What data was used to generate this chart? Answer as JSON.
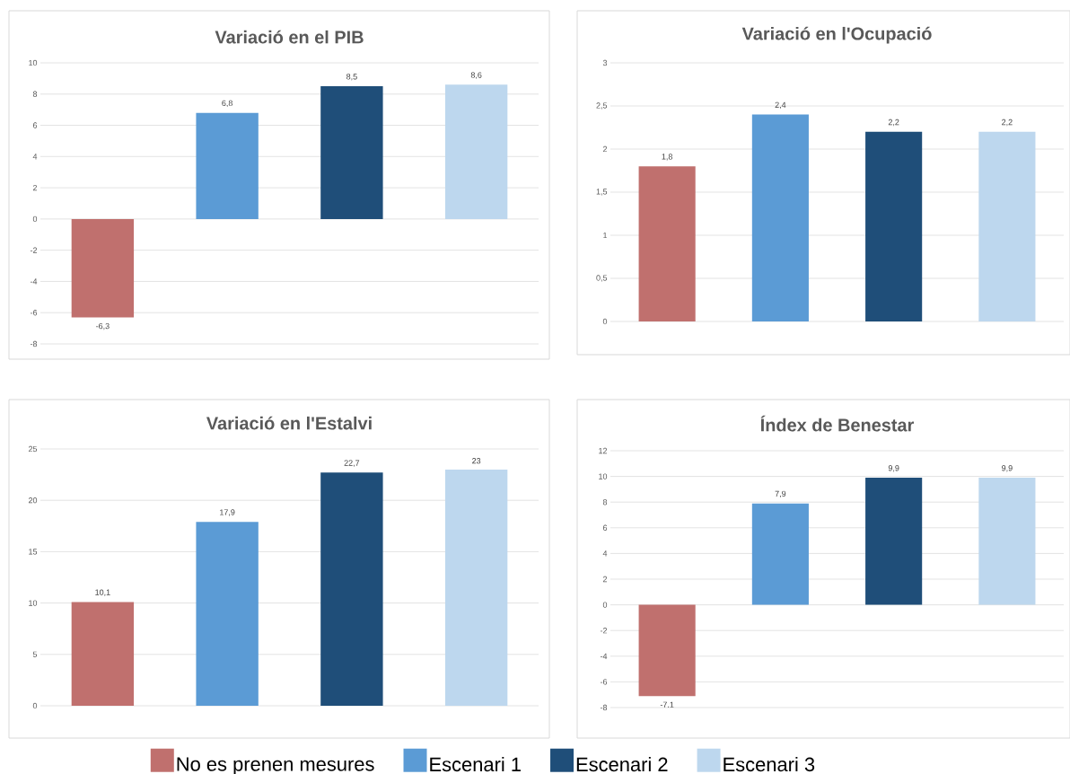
{
  "chart_data": [
    {
      "type": "bar",
      "title": "Variació en el PIB",
      "categories": [
        null,
        null,
        null,
        null
      ],
      "ylim": [
        -8,
        10
      ],
      "yticks": [
        -8,
        -6,
        -4,
        -2,
        0,
        2,
        4,
        6,
        8,
        10
      ],
      "grid": "y",
      "series": [
        {
          "color": "#c0706e",
          "values": [
            -6.3,
            null,
            null,
            null
          ],
          "value_labels": [
            "-6,3",
            null,
            null,
            null
          ]
        },
        {
          "color": "#5b9bd5",
          "values": [
            null,
            6.8,
            null,
            null
          ],
          "value_labels": [
            null,
            "6,8",
            null,
            null
          ]
        },
        {
          "color": "#1f4e79",
          "values": [
            null,
            null,
            8.5,
            null
          ],
          "value_labels": [
            null,
            null,
            "8,5",
            null
          ]
        },
        {
          "color": "#bdd7ee",
          "values": [
            null,
            null,
            null,
            8.6
          ],
          "value_labels": [
            null,
            null,
            null,
            "8,6"
          ]
        }
      ]
    },
    {
      "type": "bar",
      "title": "Variació en l'Ocupació",
      "categories": [
        null,
        null,
        null,
        null
      ],
      "ylim": [
        0,
        3
      ],
      "yticks": [
        0,
        {
          "value": 0.5,
          "label": "0,5"
        },
        1,
        {
          "value": 1.5,
          "label": "1,5"
        },
        2,
        {
          "value": 2.5,
          "label": "2,5"
        },
        3
      ],
      "grid": "y",
      "series": [
        {
          "color": "#c0706e",
          "values": [
            1.8,
            null,
            null,
            null
          ],
          "value_labels": [
            "1,8",
            null,
            null,
            null
          ]
        },
        {
          "color": "#5b9bd5",
          "values": [
            null,
            2.4,
            null,
            null
          ],
          "value_labels": [
            null,
            "2,4",
            null,
            null
          ]
        },
        {
          "color": "#1f4e79",
          "values": [
            null,
            null,
            2.2,
            null
          ],
          "value_labels": [
            null,
            null,
            "2,2",
            null
          ]
        },
        {
          "color": "#bdd7ee",
          "values": [
            null,
            null,
            null,
            2.2
          ],
          "value_labels": [
            null,
            null,
            null,
            "2,2"
          ]
        }
      ]
    },
    {
      "type": "bar",
      "title": "Variació en l'Estalvi",
      "categories": [
        null,
        null,
        null,
        null
      ],
      "ylim": [
        0,
        25
      ],
      "yticks": [
        0,
        5,
        10,
        15,
        20,
        25
      ],
      "grid": "y",
      "legend": "bottom",
      "series": [
        {
          "name": "No es prenen mesures",
          "color": "#c0706e",
          "values": [
            10.1,
            null,
            null,
            null
          ],
          "value_labels": [
            "10,1",
            null,
            null,
            null
          ]
        },
        {
          "name": "Escenari 1",
          "color": "#5b9bd5",
          "values": [
            null,
            17.9,
            null,
            null
          ],
          "value_labels": [
            null,
            "17,9",
            null,
            null
          ]
        },
        {
          "name": "Escenari 2",
          "color": "#1f4e79",
          "values": [
            null,
            null,
            22.7,
            null
          ],
          "value_labels": [
            null,
            null,
            "22,7",
            null
          ]
        },
        {
          "name": "Escenari 3",
          "color": "#bdd7ee",
          "values": [
            null,
            null,
            null,
            23
          ],
          "value_labels": [
            null,
            null,
            null,
            "23"
          ]
        }
      ]
    },
    {
      "type": "bar",
      "title": "Índex de Benestar",
      "categories": [
        null,
        null,
        null,
        null
      ],
      "ylim": [
        -8,
        12
      ],
      "yticks": [
        -8,
        -6,
        -4,
        -2,
        0,
        2,
        4,
        6,
        8,
        10,
        12
      ],
      "grid": "y",
      "series": [
        {
          "color": "#c0706e",
          "values": [
            -7.1,
            null,
            null,
            null
          ],
          "value_labels": [
            "-7,1",
            null,
            null,
            null
          ]
        },
        {
          "color": "#5b9bd5",
          "values": [
            null,
            7.9,
            null,
            null
          ],
          "value_labels": [
            null,
            "7,9",
            null,
            null
          ]
        },
        {
          "color": "#1f4e79",
          "values": [
            null,
            null,
            9.9,
            null
          ],
          "value_labels": [
            null,
            null,
            "9,9",
            null
          ]
        },
        {
          "color": "#bdd7ee",
          "values": [
            null,
            null,
            null,
            9.9
          ],
          "value_labels": [
            null,
            null,
            null,
            "9,9"
          ]
        }
      ]
    }
  ]
}
